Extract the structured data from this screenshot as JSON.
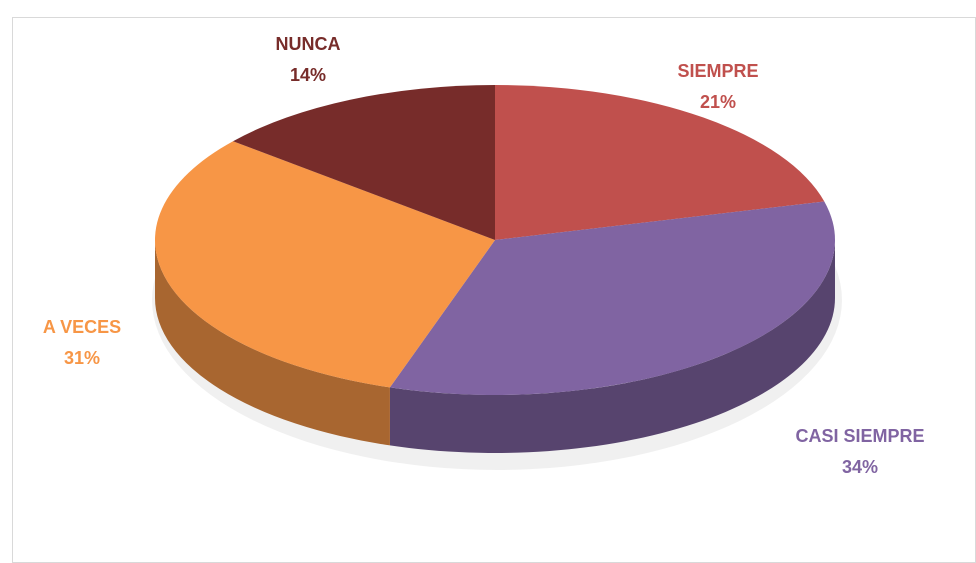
{
  "chart_data": {
    "type": "pie",
    "categories": [
      "SIEMPRE",
      "CASI SIEMPRE",
      "A VECES",
      "NUNCA"
    ],
    "values": [
      21,
      34,
      31,
      14
    ],
    "value_labels": [
      "21%",
      "34%",
      "31%",
      "14%"
    ],
    "colors": [
      "#c0504d",
      "#8064a2",
      "#f79646",
      "#772c2a"
    ]
  }
}
